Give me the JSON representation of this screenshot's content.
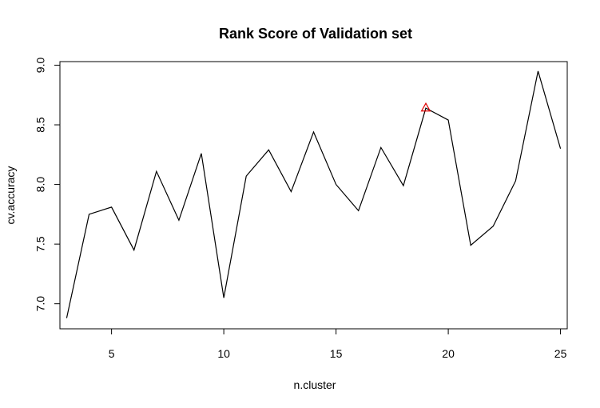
{
  "chart_data": {
    "type": "line",
    "title": "Rank Score of Validation set",
    "xlabel": "n.cluster",
    "ylabel": "cv.accuracy",
    "x": [
      3,
      4,
      5,
      6,
      7,
      8,
      9,
      10,
      11,
      12,
      13,
      14,
      15,
      16,
      17,
      18,
      19,
      20,
      21,
      22,
      23,
      24,
      25
    ],
    "series": [
      {
        "values": [
          6.88,
          7.75,
          7.81,
          7.45,
          8.11,
          7.7,
          8.26,
          7.05,
          8.07,
          8.29,
          7.94,
          8.44,
          8.0,
          7.78,
          8.31,
          7.99,
          8.64,
          8.54,
          7.49,
          7.65,
          8.03,
          8.95,
          8.3
        ],
        "color": "#000000"
      }
    ],
    "highlight": {
      "x": 19,
      "y": 8.64,
      "marker": "triangle",
      "color": "#e00000"
    },
    "xlim": [
      2.7,
      25.3
    ],
    "ylim": [
      6.79,
      9.03
    ],
    "xticks": [
      "5",
      "10",
      "15",
      "20",
      "25"
    ],
    "yticks": [
      "7.0",
      "7.5",
      "8.0",
      "8.5",
      "9.0"
    ],
    "grid": false
  }
}
